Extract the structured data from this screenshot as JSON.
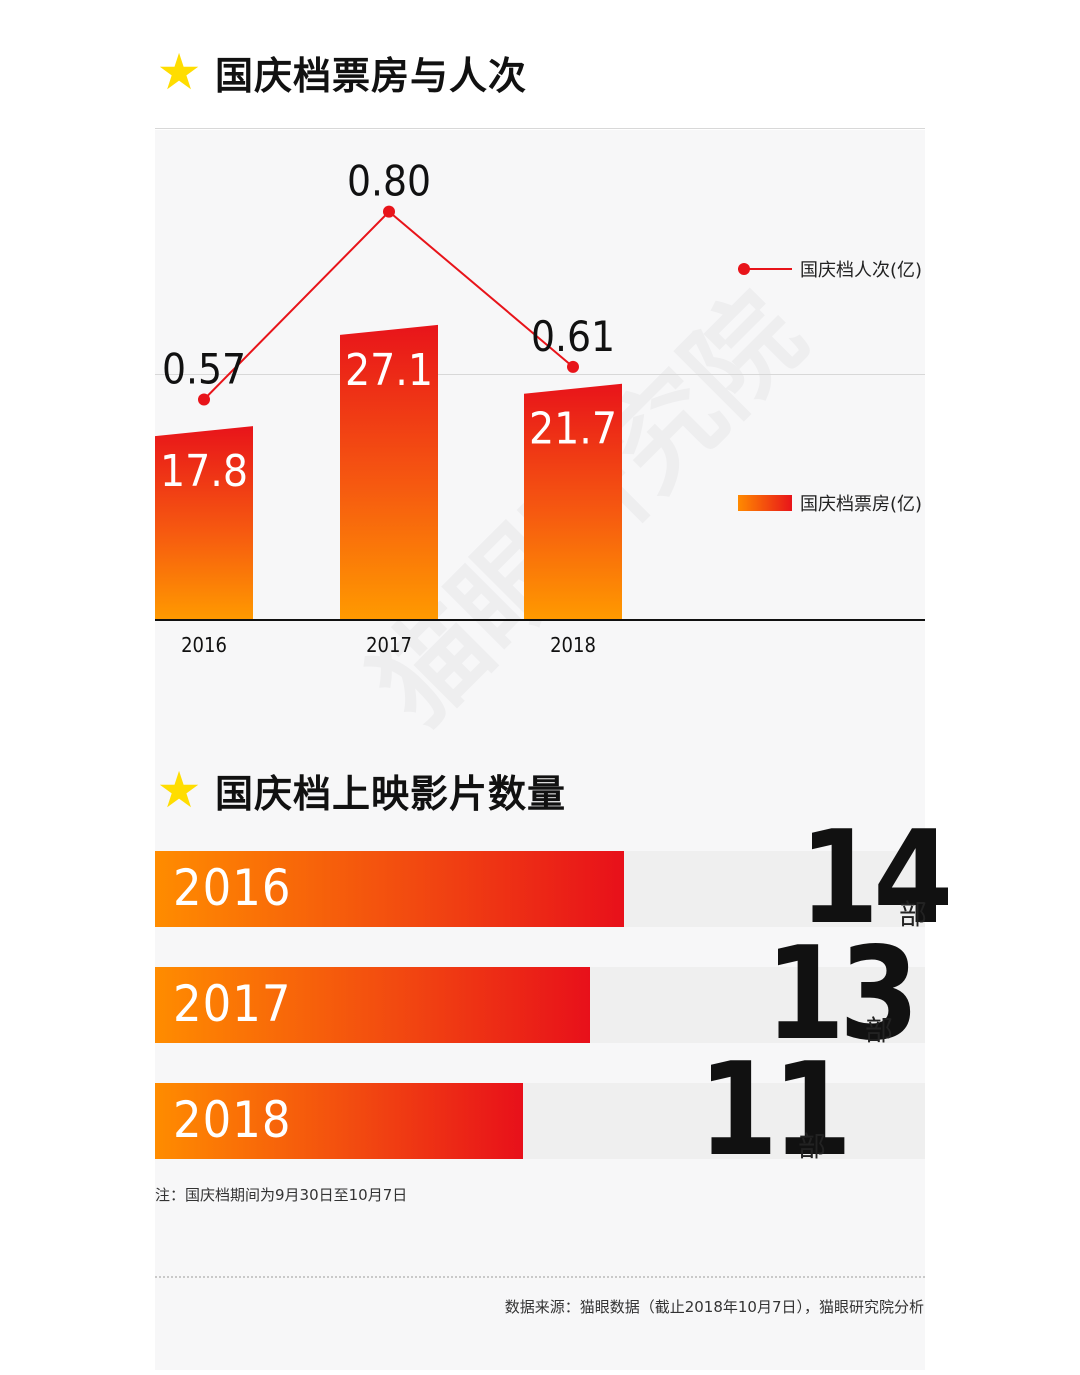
{
  "section1": {
    "star": "★",
    "title": "国庆档票房与人次"
  },
  "section2": {
    "star": "★",
    "title": "国庆档上映影片数量"
  },
  "colors": {
    "accent_red": "#e8141a",
    "accent_orange": "#ff8c00",
    "star_yellow": "#ffdd00"
  },
  "chart_data": [
    {
      "type": "bar",
      "title": "国庆档票房与人次",
      "categories": [
        "2016",
        "2017",
        "2018"
      ],
      "series": [
        {
          "name": "国庆档票房(亿)",
          "kind": "bar",
          "values": [
            17.8,
            27.1,
            21.7
          ],
          "labels": [
            "17.8",
            "27.1",
            "21.7"
          ]
        },
        {
          "name": "国庆档人次(亿)",
          "kind": "line",
          "values": [
            0.57,
            0.8,
            0.61
          ],
          "labels": [
            "0.57",
            "0.80",
            "0.61"
          ]
        }
      ],
      "legend": [
        "国庆档人次(亿)",
        "国庆档票房(亿)"
      ],
      "legend_position": "right"
    },
    {
      "type": "bar",
      "orientation": "horizontal",
      "title": "国庆档上映影片数量",
      "categories": [
        "2016",
        "2017",
        "2018"
      ],
      "values": [
        14,
        13,
        11
      ],
      "labels": [
        "14",
        "13",
        "11"
      ],
      "unit": "部"
    }
  ],
  "note": "注：国庆档期间为9月30日至10月7日",
  "source": "数据来源：猫眼数据（截止2018年10月7日），猫眼研究院分析",
  "watermark": "猫眼研究院"
}
